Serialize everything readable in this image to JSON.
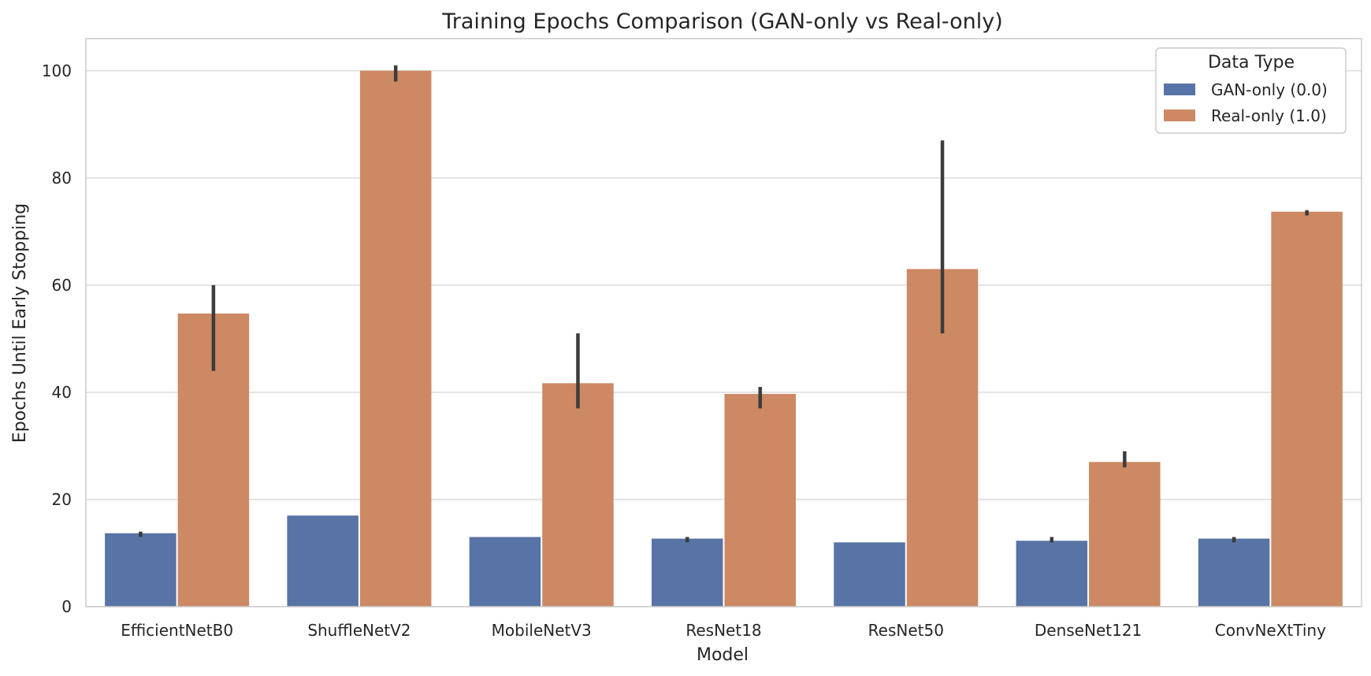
{
  "chart_data": {
    "type": "bar",
    "title": "Training Epochs Comparison (GAN-only vs Real-only)",
    "xlabel": "Model",
    "ylabel": "Epochs Until Early Stopping",
    "categories": [
      "EfficientNetB0",
      "ShuffleNetV2",
      "MobileNetV3",
      "ResNet18",
      "ResNet50",
      "DenseNet121",
      "ConvNeXtTiny"
    ],
    "ylim": [
      0,
      106
    ],
    "yticks": [
      0,
      20,
      40,
      60,
      80,
      100
    ],
    "grid": true,
    "legend": {
      "title": "Data Type",
      "position": "top-right"
    },
    "series": [
      {
        "name": "GAN-only (0.0)",
        "color": "#5874a6",
        "values": [
          13.7,
          17,
          13,
          12.7,
          12,
          12.3,
          12.7
        ],
        "error_low": [
          13,
          17,
          13,
          12,
          12,
          12,
          12
        ],
        "error_high": [
          14,
          17,
          13,
          13,
          12,
          13,
          13
        ]
      },
      {
        "name": "Real-only (1.0)",
        "color": "#cc8963",
        "values": [
          54.7,
          100,
          41.7,
          39.7,
          63,
          27,
          73.7
        ],
        "error_low": [
          44,
          98,
          37,
          37,
          51,
          26,
          73
        ],
        "error_high": [
          60,
          101,
          51,
          41,
          87,
          29,
          74
        ]
      }
    ]
  }
}
